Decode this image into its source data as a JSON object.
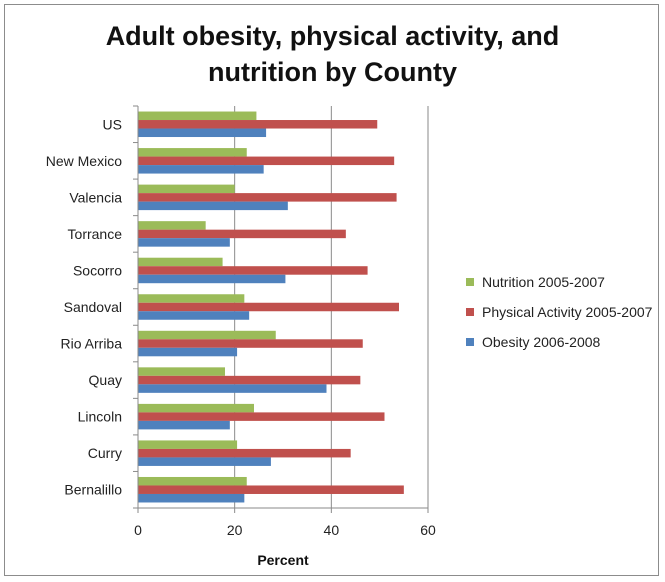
{
  "chart_data": {
    "type": "bar",
    "orientation": "horizontal",
    "title": "Adult obesity, physical activity, and\nnutrition by County",
    "xlabel": "Percent",
    "ylabel": "",
    "xlim": [
      0,
      60
    ],
    "xticks": [
      "0",
      "20",
      "40",
      "60"
    ],
    "grid": "vertical",
    "legend_position": "right",
    "categories": [
      "US",
      "New Mexico",
      "Valencia",
      "Torrance",
      "Socorro",
      "Sandoval",
      "Rio Arriba",
      "Quay",
      "Lincoln",
      "Curry",
      "Bernalillo"
    ],
    "series": [
      {
        "name": "Nutrition 2005-2007",
        "color": "#9bbb59",
        "values": [
          24.5,
          22.5,
          20,
          14,
          17.5,
          22,
          28.5,
          18,
          24,
          20.5,
          22.5
        ]
      },
      {
        "name": "Physical  Activity 2005-2007",
        "color": "#c0504d",
        "values": [
          49.5,
          53,
          53.5,
          43,
          47.5,
          54,
          46.5,
          46,
          51,
          44,
          55
        ]
      },
      {
        "name": "Obesity 2006-2008",
        "color": "#4f81bd",
        "values": [
          26.5,
          26,
          31,
          19,
          30.5,
          23,
          20.5,
          39,
          19,
          27.5,
          22
        ]
      }
    ]
  },
  "legend_order": [
    0,
    1,
    2
  ]
}
